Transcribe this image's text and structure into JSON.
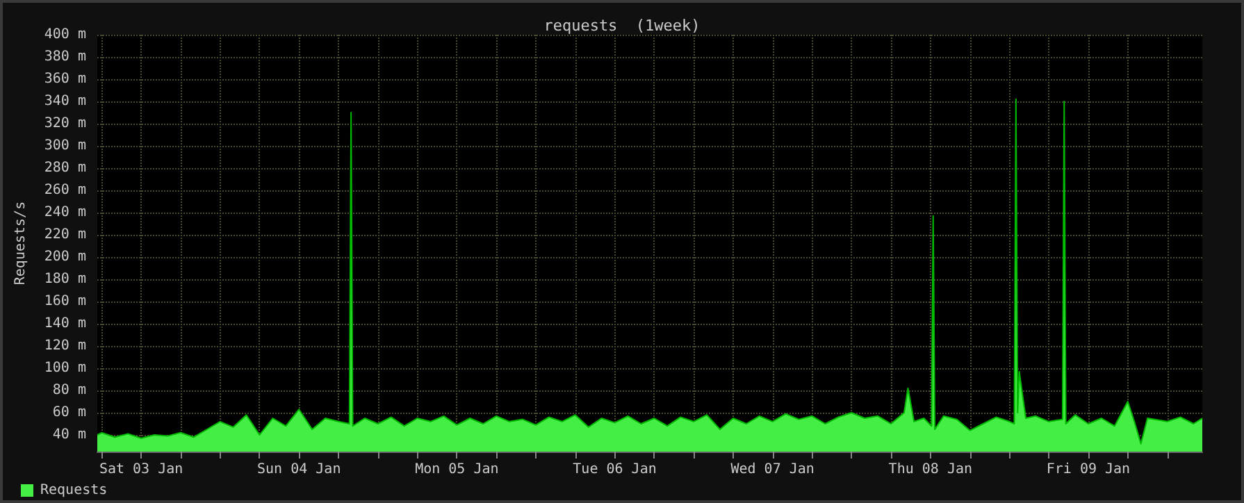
{
  "chart_data": {
    "type": "area",
    "title": "requests  (1week)",
    "ylabel": "Requests/s",
    "x": [
      "--01-03T05:20",
      "--01-03T06:00",
      "--01-03T08:00",
      "--01-03T10:00",
      "--01-03T12:00",
      "--01-03T14:00",
      "--01-03T16:00",
      "--01-03T18:00",
      "--01-03T20:00",
      "--01-03T22:00",
      "--01-04T00:00",
      "--01-04T02:00",
      "--01-04T04:00",
      "--01-04T06:00",
      "--01-04T08:00",
      "--01-04T10:00",
      "--01-04T12:00",
      "--01-04T14:00",
      "--01-04T16:00",
      "--01-04T18:00",
      "--01-04T19:40",
      "--01-04T19:55",
      "--01-04T20:10",
      "--01-04T22:00",
      "--01-05T00:00",
      "--01-05T02:00",
      "--01-05T04:00",
      "--01-05T06:00",
      "--01-05T08:00",
      "--01-05T10:00",
      "--01-05T12:00",
      "--01-05T14:00",
      "--01-05T16:00",
      "--01-05T18:00",
      "--01-05T20:00",
      "--01-05T22:00",
      "--01-06T00:00",
      "--01-06T02:00",
      "--01-06T04:00",
      "--01-06T06:00",
      "--01-06T08:00",
      "--01-06T10:00",
      "--01-06T12:00",
      "--01-06T14:00",
      "--01-06T16:00",
      "--01-06T18:00",
      "--01-06T20:00",
      "--01-06T22:00",
      "--01-07T00:00",
      "--01-07T02:00",
      "--01-07T04:00",
      "--01-07T06:00",
      "--01-07T08:00",
      "--01-07T10:00",
      "--01-07T12:00",
      "--01-07T14:00",
      "--01-07T16:00",
      "--01-07T18:00",
      "--01-07T20:00",
      "--01-07T22:00",
      "--01-08T00:00",
      "--01-08T02:00",
      "--01-08T04:00",
      "--01-08T06:00",
      "--01-08T08:00",
      "--01-08T08:35",
      "--01-08T09:30",
      "--01-08T11:00",
      "--01-08T12:10",
      "--01-08T12:25",
      "--01-08T12:40",
      "--01-08T14:00",
      "--01-08T16:00",
      "--01-08T18:00",
      "--01-08T20:00",
      "--01-08T22:00",
      "--01-09T00:00",
      "--01-09T00:45",
      "--01-09T01:00",
      "--01-09T01:15",
      "--01-09T01:30",
      "--01-09T02:30",
      "--01-09T04:00",
      "--01-09T06:00",
      "--01-09T08:05",
      "--01-09T08:20",
      "--01-09T08:35",
      "--01-09T10:00",
      "--01-09T12:00",
      "--01-09T14:00",
      "--01-09T16:00",
      "--01-09T18:00",
      "--01-09T19:00",
      "--01-09T20:00",
      "--01-09T21:00",
      "--01-09T22:00",
      "--01-10T00:00",
      "--01-10T02:00",
      "--01-10T04:00",
      "--01-10T05:20"
    ],
    "series": [
      {
        "name": "Requests",
        "color": "#44ee44",
        "values": [
          40,
          42,
          38,
          41,
          37,
          40,
          39,
          42,
          38,
          45,
          52,
          47,
          58,
          40,
          55,
          48,
          63,
          45,
          55,
          52,
          50,
          330,
          48,
          55,
          50,
          56,
          48,
          55,
          52,
          57,
          49,
          55,
          50,
          57,
          52,
          54,
          49,
          56,
          52,
          58,
          47,
          55,
          51,
          57,
          50,
          55,
          48,
          56,
          52,
          58,
          45,
          55,
          50,
          57,
          52,
          59,
          54,
          57,
          50,
          56,
          60,
          55,
          57,
          50,
          60,
          82,
          52,
          55,
          48,
          237,
          45,
          57,
          54,
          44,
          50,
          56,
          52,
          50,
          342,
          60,
          97,
          55,
          57,
          52,
          54,
          340,
          50,
          58,
          50,
          55,
          48,
          70,
          52,
          32,
          55,
          54,
          52,
          56,
          50,
          55
        ]
      }
    ],
    "xlim": [
      "--01-03T05:20",
      "--01-10T05:20"
    ],
    "xticks": [
      {
        "value": "--01-03T06:00",
        "label": null
      },
      {
        "value": "--01-03T12:00",
        "label": "Sat 03 Jan"
      },
      {
        "value": "--01-03T18:00",
        "label": null
      },
      {
        "value": "--01-04T00:00",
        "label": null
      },
      {
        "value": "--01-04T06:00",
        "label": null
      },
      {
        "value": "--01-04T12:00",
        "label": "Sun 04 Jan"
      },
      {
        "value": "--01-04T18:00",
        "label": null
      },
      {
        "value": "--01-05T00:00",
        "label": null
      },
      {
        "value": "--01-05T06:00",
        "label": null
      },
      {
        "value": "--01-05T12:00",
        "label": "Mon 05 Jan"
      },
      {
        "value": "--01-05T18:00",
        "label": null
      },
      {
        "value": "--01-06T00:00",
        "label": null
      },
      {
        "value": "--01-06T06:00",
        "label": null
      },
      {
        "value": "--01-06T12:00",
        "label": "Tue 06 Jan"
      },
      {
        "value": "--01-06T18:00",
        "label": null
      },
      {
        "value": "--01-07T00:00",
        "label": null
      },
      {
        "value": "--01-07T06:00",
        "label": null
      },
      {
        "value": "--01-07T12:00",
        "label": "Wed 07 Jan"
      },
      {
        "value": "--01-07T18:00",
        "label": null
      },
      {
        "value": "--01-08T00:00",
        "label": null
      },
      {
        "value": "--01-08T06:00",
        "label": null
      },
      {
        "value": "--01-08T12:00",
        "label": "Thu 08 Jan"
      },
      {
        "value": "--01-08T18:00",
        "label": null
      },
      {
        "value": "--01-09T00:00",
        "label": null
      },
      {
        "value": "--01-09T06:00",
        "label": null
      },
      {
        "value": "--01-09T12:00",
        "label": "Fri 09 Jan"
      },
      {
        "value": "--01-09T18:00",
        "label": null
      },
      {
        "value": "--01-10T00:00",
        "label": null
      }
    ],
    "ylim": [
      25,
      400
    ],
    "yticks": [
      {
        "value": 40,
        "label": "40 m"
      },
      {
        "value": 60,
        "label": "60 m"
      },
      {
        "value": 80,
        "label": "80 m"
      },
      {
        "value": 100,
        "label": "100 m"
      },
      {
        "value": 120,
        "label": "120 m"
      },
      {
        "value": 140,
        "label": "140 m"
      },
      {
        "value": 160,
        "label": "160 m"
      },
      {
        "value": 180,
        "label": "180 m"
      },
      {
        "value": 200,
        "label": "200 m"
      },
      {
        "value": 220,
        "label": "220 m"
      },
      {
        "value": 240,
        "label": "240 m"
      },
      {
        "value": 260,
        "label": "260 m"
      },
      {
        "value": 280,
        "label": "280 m"
      },
      {
        "value": 300,
        "label": "300 m"
      },
      {
        "value": 320,
        "label": "320 m"
      },
      {
        "value": 340,
        "label": "340 m"
      },
      {
        "value": 360,
        "label": "360 m"
      },
      {
        "value": 380,
        "label": "380 m"
      },
      {
        "value": 400,
        "label": "400 m"
      }
    ],
    "grid": true,
    "legend": "bottom left",
    "marker": "none"
  }
}
